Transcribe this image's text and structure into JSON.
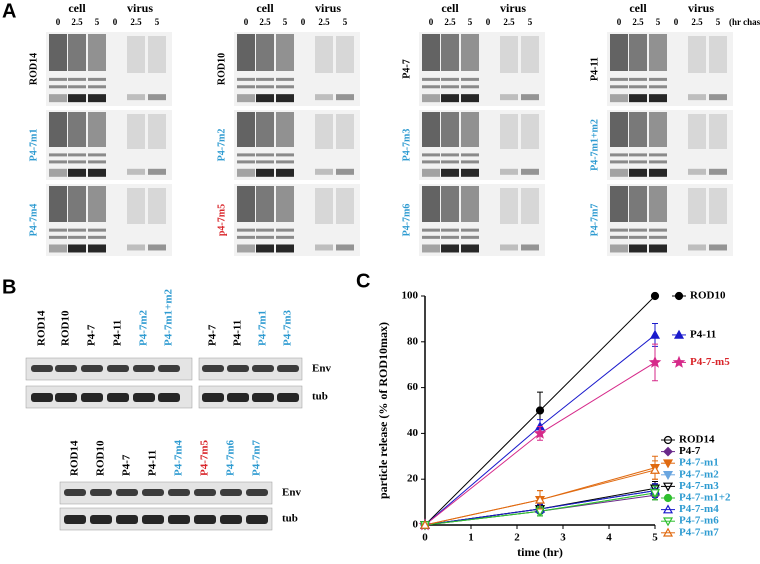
{
  "panel_a": {
    "letter": "A",
    "cell": "cell",
    "virus": "virus",
    "times": [
      "0",
      "2.5",
      "5"
    ],
    "chase": "(hr chase)",
    "blots": [
      {
        "label": "ROD14",
        "color": "#000000"
      },
      {
        "label": "ROD10",
        "color": "#000000"
      },
      {
        "label": "P4-7",
        "color": "#000000"
      },
      {
        "label": "P4-11",
        "color": "#000000"
      },
      {
        "label": "P4-7m1",
        "color": "#2e9bd1"
      },
      {
        "label": "P4-7m2",
        "color": "#2e9bd1"
      },
      {
        "label": "P4-7m3",
        "color": "#2e9bd1"
      },
      {
        "label": "P4-7m1+m2",
        "color": "#2e9bd1"
      },
      {
        "label": "P4-7m4",
        "color": "#2e9bd1"
      },
      {
        "label": "p4-7m5",
        "color": "#d9252a"
      },
      {
        "label": "P4-7m6",
        "color": "#2e9bd1"
      },
      {
        "label": "P4-7m7",
        "color": "#2e9bd1"
      }
    ]
  },
  "panel_b": {
    "letter": "B",
    "top": {
      "rows": [
        "Env",
        "tub"
      ],
      "lanes": [
        {
          "label": "ROD14",
          "color": "#000000"
        },
        {
          "label": "ROD10",
          "color": "#000000"
        },
        {
          "label": "P4-7",
          "color": "#000000"
        },
        {
          "label": "P4-11",
          "color": "#000000"
        },
        {
          "label": "P4-7m2",
          "color": "#2e9bd1"
        },
        {
          "label": "P4-7m1+m2",
          "color": "#2e9bd1"
        },
        {
          "label": "P4-7",
          "color": "#000000"
        },
        {
          "label": "P4-11",
          "color": "#000000"
        },
        {
          "label": "P4-7m1",
          "color": "#2e9bd1"
        },
        {
          "label": "P4-7m3",
          "color": "#2e9bd1"
        }
      ]
    },
    "bottom": {
      "rows": [
        "Env",
        "tub"
      ],
      "lanes": [
        {
          "label": "ROD14",
          "color": "#000000"
        },
        {
          "label": "ROD10",
          "color": "#000000"
        },
        {
          "label": "P4-7",
          "color": "#000000"
        },
        {
          "label": "P4-11",
          "color": "#000000"
        },
        {
          "label": "P4-7m4",
          "color": "#2e9bd1"
        },
        {
          "label": "P4-7m5",
          "color": "#d9252a"
        },
        {
          "label": "P4-7m6",
          "color": "#2e9bd1"
        },
        {
          "label": "P4-7m7",
          "color": "#2e9bd1"
        }
      ]
    }
  },
  "chart_data": {
    "type": "line",
    "letter": "C",
    "x_label": "time (hr)",
    "y_label": "particle release (% of ROD10max)",
    "x": [
      0,
      2.5,
      5
    ],
    "xlim": [
      0,
      5
    ],
    "xticks": [
      0,
      1,
      2,
      3,
      4,
      5
    ],
    "ylim": [
      0,
      100
    ],
    "yticks": [
      0,
      20,
      40,
      60,
      80,
      100
    ],
    "series": [
      {
        "name": "ROD10",
        "color": "#000000",
        "label_color": "#000000",
        "marker": "circle",
        "values": [
          0,
          50,
          100
        ],
        "errors": [
          0,
          8,
          0
        ]
      },
      {
        "name": "P4-11",
        "color": "#1a1acc",
        "label_color": "#000000",
        "marker": "triangle",
        "values": [
          0,
          43,
          83
        ],
        "errors": [
          0,
          3,
          5
        ]
      },
      {
        "name": "P4-7-m5",
        "color": "#d62a8a",
        "label_color": "#d9252a",
        "marker": "star",
        "values": [
          0,
          40,
          71
        ],
        "errors": [
          0,
          3,
          8
        ]
      },
      {
        "name": "ROD14",
        "color": "#000000",
        "label_color": "#000000",
        "marker": "circle-open",
        "values": [
          0,
          7,
          15
        ],
        "errors": [
          0,
          2,
          3
        ]
      },
      {
        "name": "P4-7",
        "color": "#6a2a8a",
        "label_color": "#000000",
        "marker": "diamond",
        "values": [
          0,
          6,
          13
        ],
        "errors": [
          0,
          2,
          2
        ]
      },
      {
        "name": "P4-7-m1",
        "color": "#e06a10",
        "label_color": "#2e9bd1",
        "marker": "triangle-down",
        "values": [
          0,
          11,
          25
        ],
        "errors": [
          0,
          4,
          5
        ]
      },
      {
        "name": "P4-7-m2",
        "color": "#6aa6e0",
        "label_color": "#2e9bd1",
        "marker": "triangle-down",
        "values": [
          0,
          7,
          15
        ],
        "errors": [
          0,
          2,
          3
        ]
      },
      {
        "name": "P4-7-m3",
        "color": "#000000",
        "label_color": "#2e9bd1",
        "marker": "triangle-down-open",
        "values": [
          0,
          7,
          16
        ],
        "errors": [
          0,
          2,
          3
        ]
      },
      {
        "name": "P4-7-m1+2",
        "color": "#2fbf2f",
        "label_color": "#2e9bd1",
        "marker": "circle",
        "values": [
          0,
          6,
          14
        ],
        "errors": [
          0,
          2,
          3
        ]
      },
      {
        "name": "P4-7-m4",
        "color": "#1a1acc",
        "label_color": "#2e9bd1",
        "marker": "triangle-open",
        "values": [
          0,
          7,
          15
        ],
        "errors": [
          0,
          2,
          3
        ]
      },
      {
        "name": "P4-7-m6",
        "color": "#2fbf2f",
        "label_color": "#2e9bd1",
        "marker": "triangle-down-open",
        "values": [
          0,
          6,
          14
        ],
        "errors": [
          0,
          2,
          3
        ]
      },
      {
        "name": "P4-7-m7",
        "color": "#e06a10",
        "label_color": "#2e9bd1",
        "marker": "triangle-open",
        "values": [
          0,
          11,
          24
        ],
        "errors": [
          0,
          4,
          4
        ]
      }
    ]
  }
}
